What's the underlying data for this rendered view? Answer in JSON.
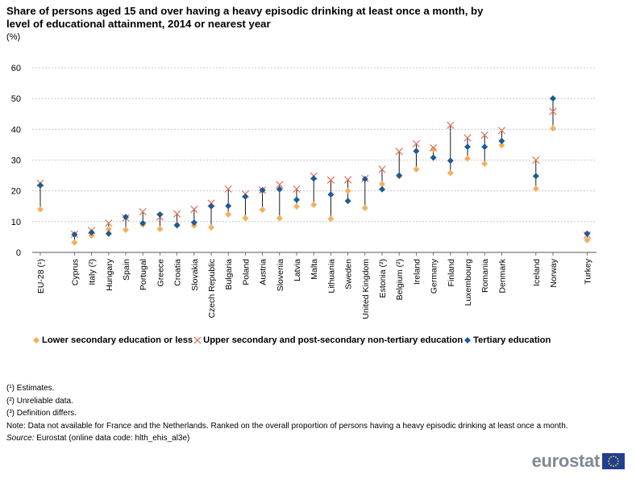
{
  "title": "Share of persons aged 15 and over having a heavy episodic drinking at least once a month, by level of educational attainment, 2014 or nearest year",
  "unit": "(%)",
  "chart_data": {
    "type": "scatter",
    "title": "Share of persons aged 15 and over having a heavy episodic drinking at least once a month, by level of educational attainment, 2014 or nearest year",
    "ylabel": "(%)",
    "ylim": [
      0,
      60
    ],
    "yticks": [
      0,
      10,
      20,
      30,
      40,
      50,
      60
    ],
    "grid": true,
    "legend_position": "bottom",
    "categories": [
      "EU-28 (¹)",
      "",
      "Cyprus",
      "Italy (²)",
      "Hungary",
      "Spain",
      "Portugal",
      "Greece",
      "Croatia",
      "Slovakia",
      "Czech Republic",
      "Bulgaria",
      "Poland",
      "Austria",
      "Slovenia",
      "Latvia",
      "Malta",
      "Lithuania",
      "Sweden",
      "United Kingdom",
      "Estonia (²)",
      "Belgium (²)",
      "Ireland",
      "Germany",
      "Finland",
      "Luxembourg",
      "Romania",
      "Denmark",
      "",
      "Iceland",
      "Norway",
      "",
      "Turkey"
    ],
    "series": [
      {
        "name": "Lower secondary education or less",
        "marker": "diamond",
        "color": "#f4b05a",
        "values": [
          14,
          null,
          3.2,
          5.5,
          7.5,
          7.3,
          9,
          7.6,
          9,
          8.7,
          8.1,
          12.3,
          11.1,
          13.9,
          11.1,
          14.9,
          15.5,
          10.9,
          20,
          14.4,
          22.2,
          24.7,
          27,
          33.5,
          25.8,
          30.5,
          28.8,
          34.8,
          null,
          20.7,
          40.3,
          null,
          4
        ]
      },
      {
        "name": "Upper secondary and post-secondary non-tertiary education",
        "marker": "x",
        "color": "#e07b60",
        "values": [
          22.5,
          null,
          5.9,
          7.1,
          9.5,
          11.2,
          13.2,
          11.5,
          12.5,
          14,
          16,
          20.6,
          19,
          20.2,
          22,
          20.6,
          24.8,
          23.5,
          23.6,
          24,
          27,
          32.8,
          35.3,
          34,
          41.3,
          37.2,
          38.1,
          39.6,
          null,
          30,
          45.8,
          null,
          5.6
        ]
      },
      {
        "name": "Tertiary education",
        "marker": "diamond",
        "color": "#1e5b93",
        "values": [
          21.8,
          null,
          5.8,
          6.5,
          6.1,
          11.5,
          9.5,
          12.3,
          8.8,
          9.7,
          15,
          15.1,
          18.1,
          20.2,
          20.5,
          17.1,
          24,
          18.8,
          16.7,
          23.8,
          20.5,
          25,
          32.9,
          30.8,
          29.8,
          34.3,
          34.3,
          36.2,
          null,
          24.8,
          50,
          null,
          6.1
        ]
      }
    ]
  },
  "legend": [
    {
      "label": "Lower secondary education or less",
      "symbol": "◆",
      "color": "#f4b05a"
    },
    {
      "label": "Upper secondary and post-secondary non-tertiary education",
      "symbol": "✕",
      "color": "#e07b60"
    },
    {
      "label": "Tertiary education",
      "symbol": "◆",
      "color": "#1e5b93"
    }
  ],
  "notes": {
    "estimates": "(¹) Estimates.",
    "unreliable": "(²) Unreliable data.",
    "definition": "(³) Definition differs.",
    "note": "Note: Data not available for France and the Netherlands. Ranked on the overall proportion of persons having a heavy episodic drinking at least once a month.",
    "source_label": "Source:",
    "source_text": " Eurostat (online data code: hlth_ehis_al3e)"
  },
  "logo": {
    "text": "eurostat"
  },
  "colors": {
    "grid": "#bdbdbd",
    "axis": "#555555",
    "connector": "#000000"
  }
}
